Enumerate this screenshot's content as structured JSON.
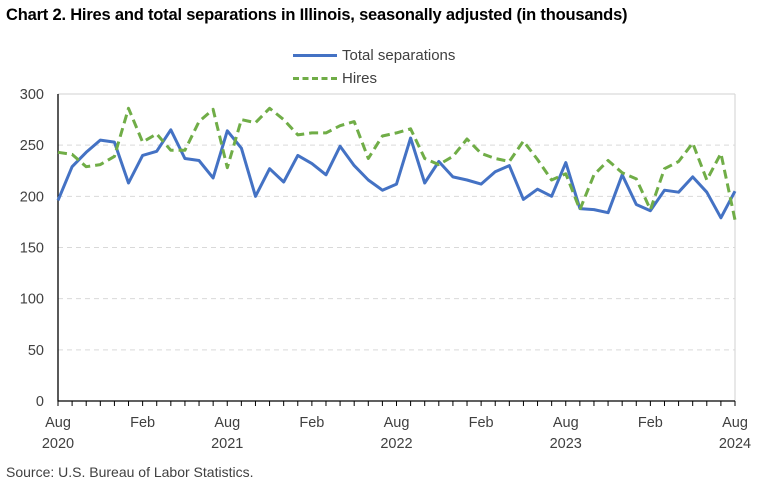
{
  "chart_data": {
    "type": "line",
    "title": "Chart 2. Hires and total separations in Illinois, seasonally adjusted (in thousands)",
    "xlabel": "",
    "ylabel": "",
    "ylim": [
      0,
      300
    ],
    "yticks": [
      0,
      50,
      100,
      150,
      200,
      250,
      300
    ],
    "grid": true,
    "legend_position": "top-center",
    "x": [
      "2020-08",
      "2020-09",
      "2020-10",
      "2020-11",
      "2020-12",
      "2021-01",
      "2021-02",
      "2021-03",
      "2021-04",
      "2021-05",
      "2021-06",
      "2021-07",
      "2021-08",
      "2021-09",
      "2021-10",
      "2021-11",
      "2021-12",
      "2022-01",
      "2022-02",
      "2022-03",
      "2022-04",
      "2022-05",
      "2022-06",
      "2022-07",
      "2022-08",
      "2022-09",
      "2022-10",
      "2022-11",
      "2022-12",
      "2023-01",
      "2023-02",
      "2023-03",
      "2023-04",
      "2023-05",
      "2023-06",
      "2023-07",
      "2023-08",
      "2023-09",
      "2023-10",
      "2023-11",
      "2023-12",
      "2024-01",
      "2024-02",
      "2024-03",
      "2024-04",
      "2024-05",
      "2024-06",
      "2024-07",
      "2024-08"
    ],
    "xtick_labels": [
      {
        "index": 0,
        "line1": "Aug",
        "line2": "2020"
      },
      {
        "index": 6,
        "line1": "Feb",
        "line2": ""
      },
      {
        "index": 12,
        "line1": "Aug",
        "line2": "2021"
      },
      {
        "index": 18,
        "line1": "Feb",
        "line2": ""
      },
      {
        "index": 24,
        "line1": "Aug",
        "line2": "2022"
      },
      {
        "index": 30,
        "line1": "Feb",
        "line2": ""
      },
      {
        "index": 36,
        "line1": "Aug",
        "line2": "2023"
      },
      {
        "index": 42,
        "line1": "Feb",
        "line2": ""
      },
      {
        "index": 48,
        "line1": "Aug",
        "line2": "2024"
      }
    ],
    "series": [
      {
        "name": "Total separations",
        "color": "#4472C4",
        "style": "solid",
        "values": [
          196,
          229,
          243,
          255,
          253,
          213,
          240,
          244,
          265,
          237,
          235,
          218,
          264,
          247,
          200,
          227,
          214,
          240,
          232,
          221,
          249,
          230,
          216,
          206,
          212,
          257,
          213,
          234,
          219,
          216,
          212,
          224,
          230,
          197,
          207,
          200,
          233,
          188,
          187,
          184,
          221,
          192,
          186,
          206,
          204,
          219,
          204,
          179,
          205
        ]
      },
      {
        "name": "Hires",
        "color": "#70AD47",
        "style": "dashed",
        "values": [
          243,
          241,
          229,
          231,
          239,
          286,
          253,
          261,
          245,
          245,
          273,
          285,
          228,
          275,
          272,
          286,
          275,
          260,
          262,
          262,
          269,
          273,
          237,
          259,
          262,
          266,
          237,
          231,
          239,
          256,
          242,
          237,
          234,
          254,
          236,
          216,
          222,
          187,
          221,
          235,
          223,
          217,
          187,
          227,
          234,
          252,
          216,
          242,
          177
        ]
      }
    ],
    "source": "Source: U.S. Bureau of Labor Statistics."
  }
}
